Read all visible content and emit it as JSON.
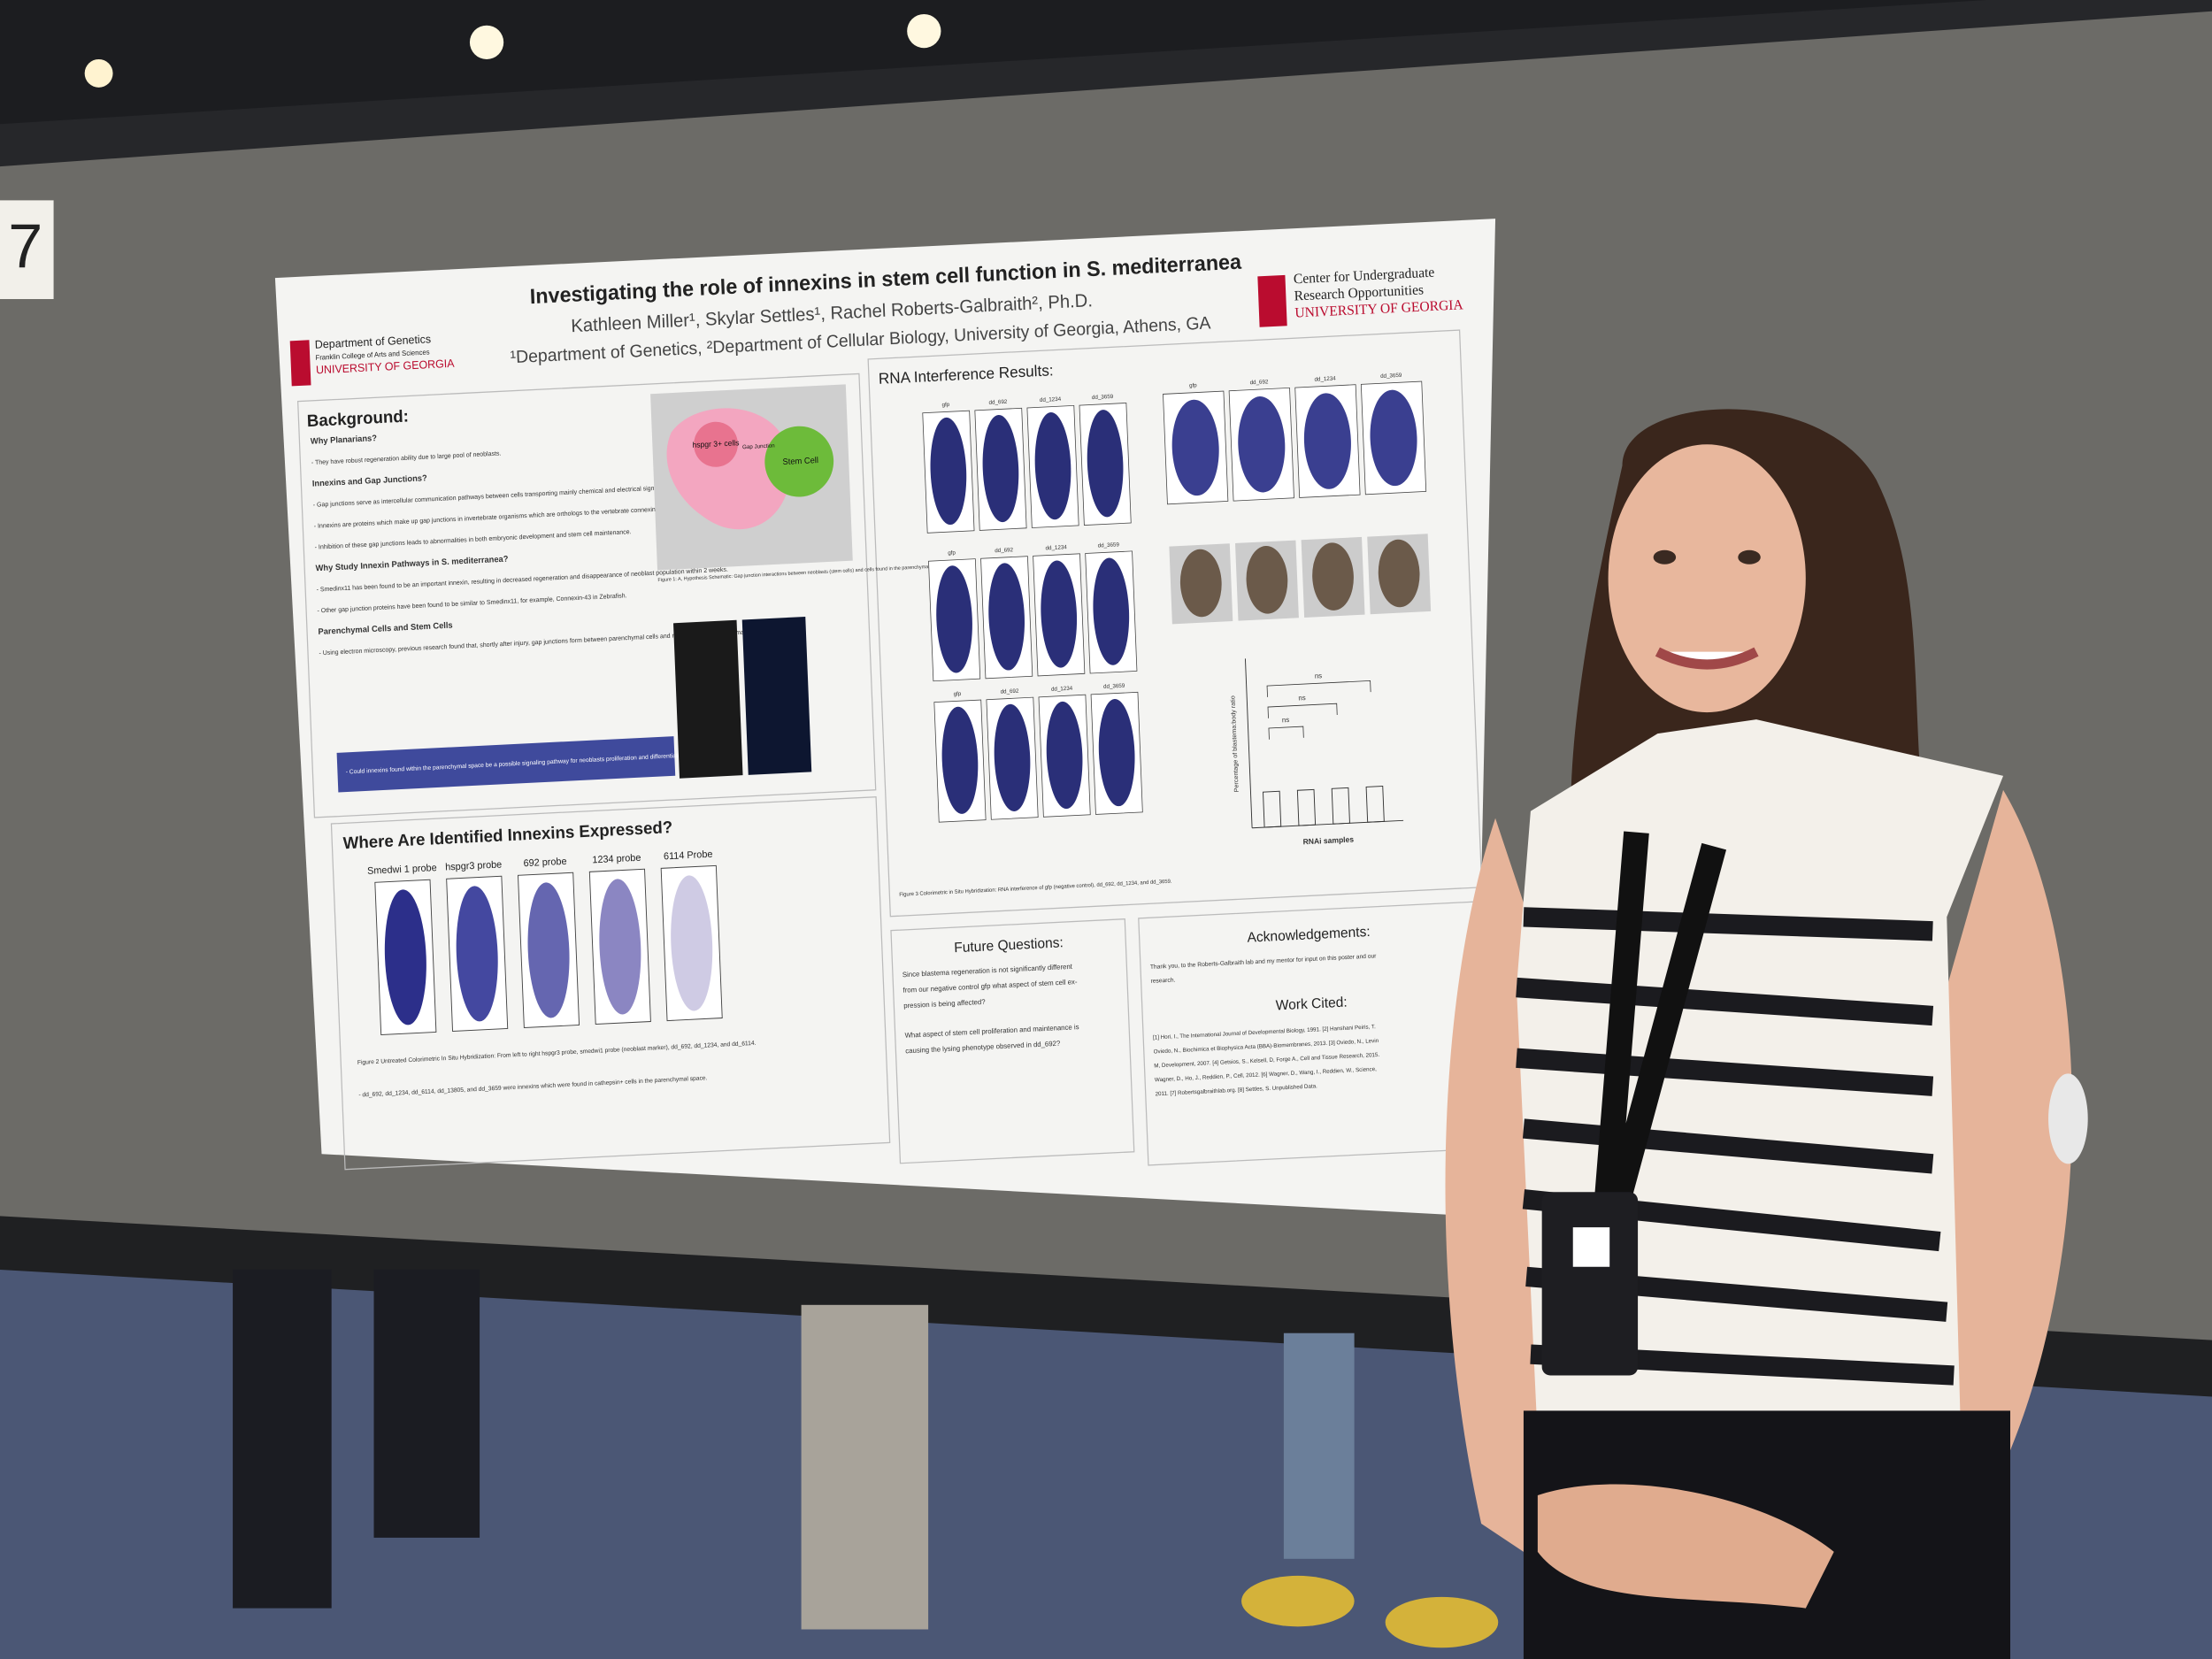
{
  "sign": "7",
  "poster": {
    "title": "Investigating the role of innexins in stem cell function in S. mediterranea",
    "authors": "Kathleen Miller¹, Skylar Settles¹, Rachel Roberts-Galbraith², Ph.D.",
    "affiliations": "¹Department of Genetics, ²Department of Cellular Biology, University of Georgia, Athens, GA",
    "logo_left": [
      "Department of Genetics",
      "Franklin College of Arts and Sciences",
      "UNIVERSITY OF GEORGIA"
    ],
    "logo_right": [
      "Center for Undergraduate",
      "Research Opportunities",
      "UNIVERSITY OF GEORGIA"
    ],
    "background": {
      "heading": "Background:",
      "lines": [
        "Why Planarians?",
        "- They have robust regeneration ability due to large pool of neoblasts.",
        "Innexins and Gap Junctions?",
        "- Gap junctions serve as intercellular communication pathways between cells transporting mainly chemical and electrical signals.",
        "- Innexins are proteins which make up gap junctions in invertebrate organisms which are orthologs to the vertebrate connexin.",
        "- Inhibition of these gap junctions leads to abnormalities in both embryonic development and stem cell maintenance.",
        "Why Study Innexin Pathways in S. mediterranea?",
        "- Smedinx11 has been found to be an important innexin, resulting in decreased regeneration and disappearance of neoblast population within 2 weeks.",
        "- Other gap junction proteins have been found to be similar to Smedinx11, for example, Connexin-43 in Zebrafish.",
        "Parenchymal Cells and Stem Cells",
        "- Using electron microscopy, previous research found that, shortly after injury, gap junctions form between parenchymal cells and neoblasts during blastema formation."
      ],
      "question": "- Could innexins found within the parenchymal space be a possible signaling pathway for neoblasts proliferation and differentiation?"
    },
    "figure1": {
      "labels": [
        "hspgr 3+ cells",
        "Gap Junction",
        "Stem Cell"
      ],
      "caption": "Figure 1: A, Hypothesis Schematic: Gap junction interactions between neoblasts (stem cells) and cells found in the parenchymal space."
    },
    "expression": {
      "heading": "Where Are Identified Innexins Expressed?",
      "probes": [
        "Smedwi 1 probe",
        "hspgr3 probe",
        "692 probe",
        "1234 probe",
        "6114 Probe"
      ],
      "caption": "Figure 2 Untreated Colorimetric In Situ Hybridization: From left to right hspgr3 probe, smedwi1 probe (neoblast marker), dd_692, dd_1234, and dd_6114.",
      "note": "- dd_692, dd_1234, dd_6114, dd_13805, and dd_3659 were innexins which were found in cathepsin+ cells in the parenchymal space."
    },
    "rnai": {
      "heading": "RNA Interference Results:",
      "columns": [
        "gfp",
        "dd_692",
        "dd_1234",
        "dd_3659"
      ],
      "y_label": "Percentage of blastema:body ratio",
      "x_label": "RNAi samples",
      "ns": "ns",
      "caption": "Figure 3 Colorimetric in Situ Hybridization: RNA interference of gfp (negative control), dd_692, dd_1234, and dd_3659."
    },
    "future": {
      "heading": "Future Questions:",
      "lines": [
        "Since blastema regeneration is not significantly different",
        "from our negative control gfp what aspect of stem cell ex-",
        "pression is being affected?",
        "What aspect of stem cell proliferation and maintenance is",
        "causing the lysing phenotype observed in dd_692?"
      ]
    },
    "acknowledgements": {
      "heading": "Acknowledgements:",
      "lines": [
        "Thank you, to the Roberts-Galbraith lab and my mentor for input on this poster and our",
        "research."
      ]
    },
    "work_cited": {
      "heading": "Work Cited:",
      "lines": [
        "[1] Hori, I., The International Journal of Developmental Biology, 1991. [2] Hanshani Peiris, T.",
        "Oviedo, N., Biochimica et Biophysica Acta (BBA)-Biomembranes, 2013. [3] Oviedo, N., Levin",
        "M, Development, 2007. [4] Getsios, S., Kelsell, D, Forge A., Cell and Tissue Research, 2015.",
        "Wagner, D., Ho, J., Reddien, P., Cell, 2012. [6] Wagner, D., Wang, I., Reddien, W., Science,",
        "2011. [7] Robertsgalbraithlab.org. [8] Settles, S. Unpublished Data."
      ]
    }
  }
}
